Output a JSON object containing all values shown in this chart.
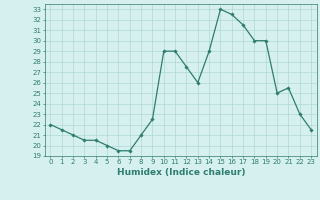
{
  "xlabel": "Humidex (Indice chaleur)",
  "x": [
    0,
    1,
    2,
    3,
    4,
    5,
    6,
    7,
    8,
    9,
    10,
    11,
    12,
    13,
    14,
    15,
    16,
    17,
    18,
    19,
    20,
    21,
    22,
    23
  ],
  "y": [
    22,
    21.5,
    21,
    20.5,
    20.5,
    20,
    19.5,
    19.5,
    21,
    22.5,
    29,
    29,
    27.5,
    26,
    29,
    33,
    32.5,
    31.5,
    30,
    30,
    25,
    25.5,
    23,
    21.5
  ],
  "line_color": "#2e7d6e",
  "marker": "D",
  "marker_size": 1.8,
  "bg_color": "#d6f0ef",
  "grid_color": "#b0d8d4",
  "tick_color": "#2e7d6e",
  "label_color": "#2e7d6e",
  "ylim": [
    19,
    33.5
  ],
  "yticks": [
    19,
    20,
    21,
    22,
    23,
    24,
    25,
    26,
    27,
    28,
    29,
    30,
    31,
    32,
    33
  ],
  "xticks": [
    0,
    1,
    2,
    3,
    4,
    5,
    6,
    7,
    8,
    9,
    10,
    11,
    12,
    13,
    14,
    15,
    16,
    17,
    18,
    19,
    20,
    21,
    22,
    23
  ],
  "tick_fontsize": 5.0,
  "xlabel_fontsize": 6.5,
  "linewidth": 0.9
}
